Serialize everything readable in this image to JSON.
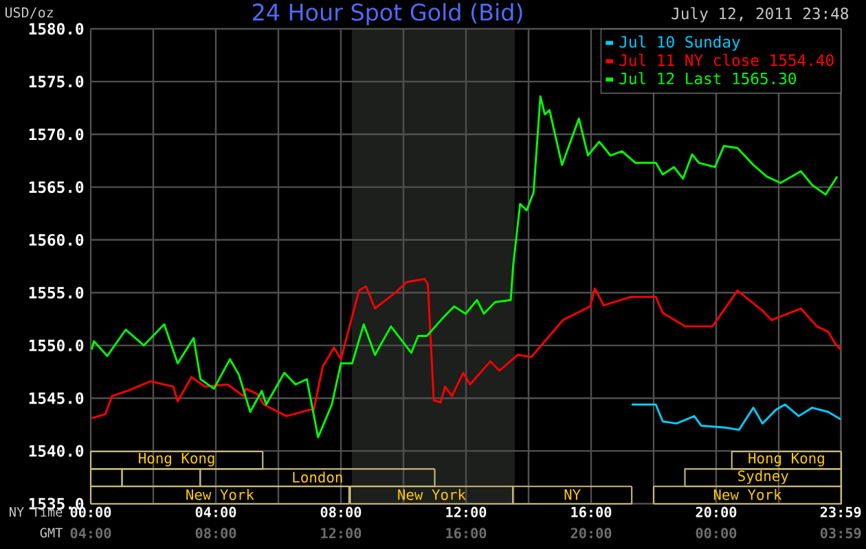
{
  "chart_data": {
    "type": "line",
    "title": "24 Hour Spot Gold (Bid)",
    "subtitle": "July 12, 2011 23:48",
    "ylabel": "USD/oz",
    "xlabel": "NY Time",
    "x2label": "GMT",
    "xlim": [
      0,
      24
    ],
    "ylim": [
      1535,
      1580
    ],
    "xticks": [
      {
        "value": 0,
        "label": "00:00"
      },
      {
        "value": 2,
        "label": null
      },
      {
        "value": 4,
        "label": "04:00"
      },
      {
        "value": 6,
        "label": null
      },
      {
        "value": 8,
        "label": "08:00"
      },
      {
        "value": 10,
        "label": null
      },
      {
        "value": 12,
        "label": "12:00"
      },
      {
        "value": 14,
        "label": null
      },
      {
        "value": 16,
        "label": "16:00"
      },
      {
        "value": 18,
        "label": null
      },
      {
        "value": 20,
        "label": "20:00"
      },
      {
        "value": 22,
        "label": null
      },
      {
        "value": 23.983,
        "label": "23:59"
      }
    ],
    "x2lim": [
      "2011-07-12T04:00",
      "2011-07-13T04:00"
    ],
    "x2ticks": [
      {
        "value": "2011-07-12T04:00",
        "label": "04:00"
      },
      {
        "value": "2011-07-12T08:00",
        "label": "08:00"
      },
      {
        "value": "2011-07-12T12:00",
        "label": "12:00"
      },
      {
        "value": "2011-07-12T16:00",
        "label": "16:00"
      },
      {
        "value": "2011-07-12T20:00",
        "label": "20:00"
      },
      {
        "value": "2011-07-13T00:00",
        "label": "00:00"
      },
      {
        "value": "2011-07-13T03:59",
        "label": "03:59"
      }
    ],
    "yticks": [
      {
        "value": 1535,
        "label": "1535.0"
      },
      {
        "value": 1540,
        "label": "1540.0"
      },
      {
        "value": 1545,
        "label": "1545.0"
      },
      {
        "value": 1550,
        "label": "1550.0"
      },
      {
        "value": 1555,
        "label": "1555.0"
      },
      {
        "value": 1560,
        "label": "1560.0"
      },
      {
        "value": 1565,
        "label": "1565.0"
      },
      {
        "value": 1570,
        "label": "1570.0"
      },
      {
        "value": 1575,
        "label": "1575.0"
      },
      {
        "value": 1580,
        "label": "1580.0"
      }
    ],
    "grid": true,
    "legend": "top right",
    "series": [
      {
        "name": "Jul 10 Sunday",
        "color": "#00ccff",
        "x": [
          17.3,
          18.07,
          18.29,
          18.73,
          19.3,
          19.52,
          20.32,
          20.73,
          21.19,
          21.48,
          21.91,
          22.2,
          22.64,
          23.07,
          23.58,
          23.98
        ],
        "values": [
          1544.4,
          1544.4,
          1542.8,
          1542.6,
          1543.3,
          1542.4,
          1542.2,
          1542.0,
          1544.1,
          1542.6,
          1543.9,
          1544.4,
          1543.3,
          1544.1,
          1543.7,
          1543.0
        ]
      },
      {
        "name": "Jul 11 NY close 1554.40",
        "color": "#ff0000",
        "x": [
          0.03,
          0.47,
          0.68,
          1.19,
          1.91,
          2.64,
          2.78,
          3.22,
          3.65,
          4.38,
          4.88,
          4.96,
          5.32,
          5.53,
          6.26,
          6.99,
          7.13,
          7.42,
          7.78,
          8.0,
          8.58,
          8.8,
          9.09,
          9.74,
          10.1,
          10.68,
          10.78,
          10.97,
          11.19,
          11.33,
          11.55,
          11.91,
          12.13,
          12.78,
          13.07,
          13.65,
          14.09,
          14.52,
          15.1,
          15.97,
          16.12,
          16.4,
          17.27,
          18.07,
          18.29,
          19.01,
          19.88,
          20.68,
          21.48,
          21.77,
          22.71,
          23.22,
          23.58,
          23.8,
          23.98
        ],
        "values": [
          1543.1,
          1543.5,
          1545.2,
          1545.7,
          1546.6,
          1546.1,
          1544.7,
          1547.0,
          1546.1,
          1546.3,
          1545.2,
          1545.9,
          1545.4,
          1544.4,
          1543.3,
          1543.9,
          1543.9,
          1548.0,
          1549.8,
          1548.7,
          1555.2,
          1555.6,
          1553.5,
          1555.0,
          1556.0,
          1556.3,
          1555.8,
          1544.8,
          1544.6,
          1546.1,
          1545.2,
          1547.4,
          1546.3,
          1548.5,
          1547.6,
          1549.1,
          1548.9,
          1550.4,
          1552.4,
          1553.7,
          1555.4,
          1553.8,
          1554.6,
          1554.6,
          1553.1,
          1551.8,
          1551.8,
          1555.2,
          1553.3,
          1552.4,
          1553.5,
          1551.8,
          1551.3,
          1550.2,
          1549.6
        ]
      },
      {
        "name": "Jul 12 Last 1565.30",
        "color": "#00ff00",
        "x": [
          0.03,
          0.1,
          0.53,
          1.12,
          1.7,
          2.35,
          2.78,
          3.29,
          3.51,
          3.94,
          4.45,
          4.74,
          5.1,
          5.47,
          5.61,
          6.19,
          6.55,
          6.91,
          7.27,
          7.71,
          8.0,
          8.36,
          8.73,
          9.09,
          9.6,
          10.25,
          10.47,
          10.75,
          11.26,
          11.62,
          11.99,
          12.35,
          12.57,
          12.93,
          13.43,
          13.51,
          13.73,
          13.94,
          14.16,
          14.38,
          14.52,
          14.67,
          15.07,
          15.61,
          15.9,
          16.26,
          16.62,
          16.99,
          17.42,
          18.07,
          18.29,
          18.65,
          18.94,
          19.23,
          19.45,
          19.96,
          20.25,
          20.68,
          21.19,
          21.62,
          22.06,
          22.71,
          23.07,
          23.5,
          23.87
        ],
        "values": [
          1549.6,
          1550.4,
          1549.0,
          1551.5,
          1550.0,
          1552.0,
          1548.3,
          1550.7,
          1546.8,
          1545.9,
          1548.7,
          1547.2,
          1543.7,
          1545.7,
          1544.4,
          1547.4,
          1546.3,
          1546.8,
          1541.3,
          1544.4,
          1548.3,
          1548.3,
          1552.0,
          1549.1,
          1551.8,
          1549.3,
          1550.9,
          1550.9,
          1552.6,
          1553.7,
          1553.0,
          1554.3,
          1553.0,
          1554.1,
          1554.3,
          1557.6,
          1563.4,
          1562.8,
          1564.5,
          1573.6,
          1571.9,
          1572.3,
          1567.1,
          1571.5,
          1568.0,
          1569.3,
          1568.0,
          1568.4,
          1567.3,
          1567.3,
          1566.2,
          1566.9,
          1565.8,
          1568.1,
          1567.3,
          1566.9,
          1568.9,
          1568.7,
          1567.1,
          1566.0,
          1565.4,
          1566.5,
          1565.2,
          1564.3,
          1566.0
        ]
      }
    ],
    "bands": [
      {
        "axis": "x",
        "from": 8.35,
        "to": 13.56,
        "color": "#1c1f1c"
      }
    ],
    "annotations": [
      "Hong Kong",
      "London",
      "New York",
      "New York",
      "NY",
      "Hong Kong",
      "Sydney",
      "New York"
    ]
  }
}
